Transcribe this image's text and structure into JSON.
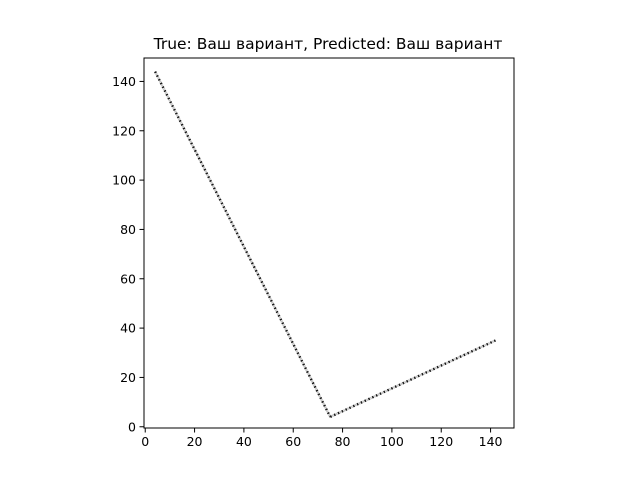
{
  "chart_data": {
    "type": "line",
    "title": "True: Ваш вариант, Predicted: Ваш вариант",
    "xlabel": "",
    "ylabel": "",
    "xlim": [
      -0.5,
      149.5
    ],
    "ylim": [
      149.5,
      -0.5
    ],
    "y_axis_inverted": true,
    "grid": false,
    "x_ticks": [
      0,
      20,
      40,
      60,
      80,
      100,
      120,
      140
    ],
    "y_ticks": [
      0,
      20,
      40,
      60,
      80,
      100,
      120,
      140
    ],
    "series": [
      {
        "style": "dotted",
        "color": "#1a1a1a",
        "x": [
          4,
          75,
          142
        ],
        "y": [
          144,
          4,
          35
        ]
      }
    ]
  }
}
